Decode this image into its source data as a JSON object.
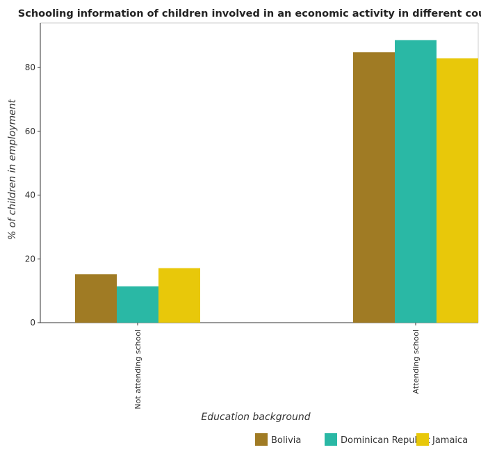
{
  "chart_data": {
    "type": "bar",
    "title": "Schooling information of children involved in an economic activity in different countries",
    "xlabel": "Education background",
    "ylabel": "% of children in employment",
    "categories": [
      "Not attending school",
      "Attending school"
    ],
    "series": [
      {
        "name": "Bolivia",
        "color": "#a07b24",
        "values": [
          15.2,
          84.8
        ]
      },
      {
        "name": "Dominican Republic",
        "color": "#2ab8a5",
        "values": [
          11.4,
          88.6
        ]
      },
      {
        "name": "Jamaica",
        "color": "#e8c80a",
        "values": [
          17.1,
          82.9
        ]
      }
    ],
    "ylim": [
      0,
      94
    ],
    "yticks": [
      0,
      20,
      40,
      60,
      80
    ],
    "grid": false,
    "legend": "bottom-right"
  }
}
